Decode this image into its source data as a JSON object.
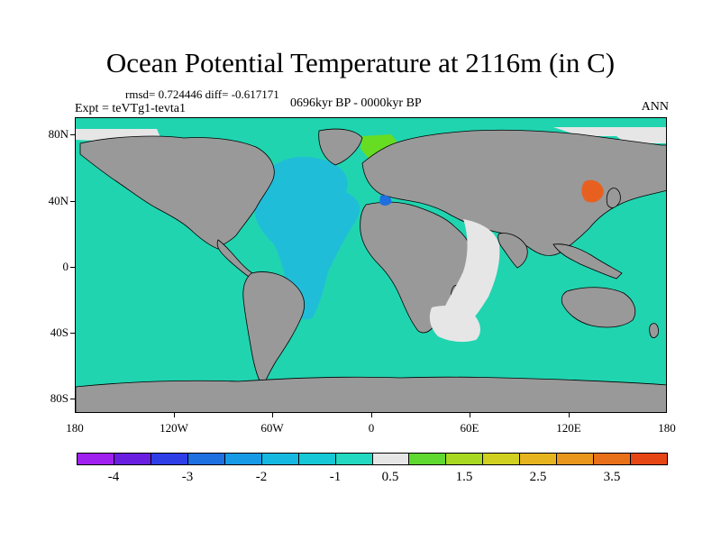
{
  "title": "Ocean Potential Temperature at 2116m (in C)",
  "stats": "rmsd= 0.724446 diff= -0.617171",
  "period": "0696kyr BP - 0000kyr BP",
  "experiment": "Expt = teVTg1-tevta1",
  "season": "ANN",
  "lat_labels": [
    "80N",
    "40N",
    "0",
    "40S",
    "80S"
  ],
  "lon_labels": [
    "180",
    "120W",
    "60W",
    "0",
    "60E",
    "120E",
    "180"
  ],
  "colorbar": {
    "colors": [
      "#a020f0",
      "#6a1fe0",
      "#2f3fe8",
      "#1e6fe0",
      "#169ae6",
      "#14b8e0",
      "#16c7d5",
      "#22d8c0",
      "#e6e6e6",
      "#5fd830",
      "#a8d820",
      "#d0d020",
      "#e6b41e",
      "#e8961c",
      "#e87018",
      "#e64614"
    ],
    "labels": [
      "-4",
      "-3",
      "-2",
      "-1",
      "0.5",
      "1.5",
      "2.5",
      "3.5"
    ]
  },
  "legend_colors": {
    "ocean_base": "#20d4b0",
    "land": "#999999",
    "slightly_warmer": "#e6e6e6",
    "atlantic_cold": "#20bdd8",
    "nordic_warm": "#66dd22",
    "japan_warm": "#e86020"
  }
}
